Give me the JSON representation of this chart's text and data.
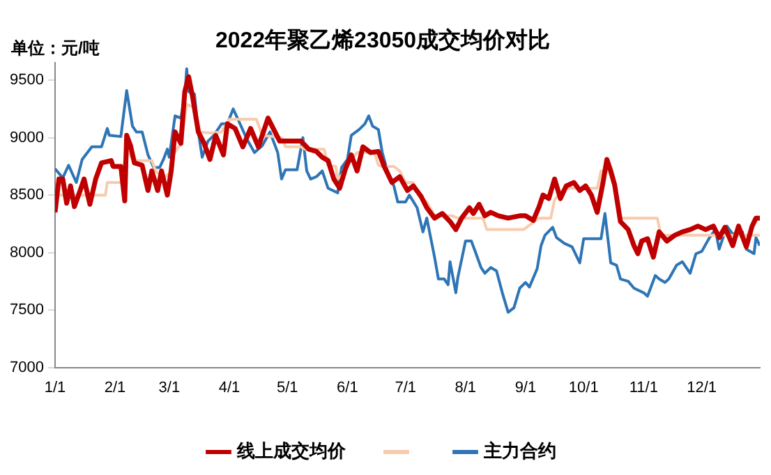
{
  "chart_data": {
    "type": "line",
    "title": "2022年聚乙烯23050成交均价对比",
    "ylabel": "单位：元/吨",
    "xlim": [
      "2022-01-01",
      "2022-12-31"
    ],
    "xticks": [
      {
        "value": "2022-01-01",
        "label": "1/1"
      },
      {
        "value": "2022-02-01",
        "label": "2/1"
      },
      {
        "value": "2022-03-01",
        "label": "3/1"
      },
      {
        "value": "2022-04-01",
        "label": "4/1"
      },
      {
        "value": "2022-05-01",
        "label": "5/1"
      },
      {
        "value": "2022-06-01",
        "label": "6/1"
      },
      {
        "value": "2022-07-01",
        "label": "7/1"
      },
      {
        "value": "2022-08-01",
        "label": "8/1"
      },
      {
        "value": "2022-09-01",
        "label": "9/1"
      },
      {
        "value": "2022-10-01",
        "label": "10/1"
      },
      {
        "value": "2022-11-01",
        "label": "11/1"
      },
      {
        "value": "2022-12-01",
        "label": "12/1"
      }
    ],
    "ylim": [
      7000,
      9650
    ],
    "yticks": [
      7000,
      7500,
      8000,
      8500,
      9000,
      9500
    ],
    "grid": false,
    "legend": "bottom",
    "marker": "none",
    "line_style": "solid",
    "series": [
      {
        "name": "线上成交均价",
        "color": "#c00000",
        "x": [
          "2022-01-01",
          "2022-01-03",
          "2022-01-05",
          "2022-01-07",
          "2022-01-09",
          "2022-01-11",
          "2022-01-14",
          "2022-01-16",
          "2022-01-19",
          "2022-01-22",
          "2022-01-25",
          "2022-01-30",
          "2022-01-31",
          "2022-02-04",
          "2022-02-06",
          "2022-02-07",
          "2022-02-09",
          "2022-02-11",
          "2022-02-15",
          "2022-02-18",
          "2022-02-20",
          "2022-02-23",
          "2022-02-25",
          "2022-02-28",
          "2022-03-02",
          "2022-03-04",
          "2022-03-07",
          "2022-03-09",
          "2022-03-11",
          "2022-03-13",
          "2022-03-16",
          "2022-03-19",
          "2022-03-22",
          "2022-03-25",
          "2022-03-29",
          "2022-03-31",
          "2022-04-04",
          "2022-04-08",
          "2022-04-12",
          "2022-04-16",
          "2022-04-21",
          "2022-04-24",
          "2022-04-27",
          "2022-05-08",
          "2022-05-12",
          "2022-05-16",
          "2022-05-19",
          "2022-05-22",
          "2022-05-25",
          "2022-05-28",
          "2022-05-31",
          "2022-06-03",
          "2022-06-06",
          "2022-06-09",
          "2022-06-13",
          "2022-06-17",
          "2022-06-20",
          "2022-06-24",
          "2022-06-28",
          "2022-07-02",
          "2022-07-05",
          "2022-07-09",
          "2022-07-12",
          "2022-07-16",
          "2022-07-20",
          "2022-07-24",
          "2022-07-27",
          "2022-07-30",
          "2022-08-03",
          "2022-08-05",
          "2022-08-08",
          "2022-08-11",
          "2022-08-14",
          "2022-08-18",
          "2022-08-23",
          "2022-08-29",
          "2022-09-01",
          "2022-09-05",
          "2022-09-08",
          "2022-09-10",
          "2022-09-13",
          "2022-09-16",
          "2022-09-19",
          "2022-09-22",
          "2022-09-26",
          "2022-09-29",
          "2022-10-02",
          "2022-10-05",
          "2022-10-08",
          "2022-10-11",
          "2022-10-13",
          "2022-10-15",
          "2022-10-17",
          "2022-10-20",
          "2022-10-24",
          "2022-10-27",
          "2022-10-29",
          "2022-10-31",
          "2022-11-03",
          "2022-11-06",
          "2022-11-09",
          "2022-11-13",
          "2022-11-17",
          "2022-11-21",
          "2022-11-25",
          "2022-11-29",
          "2022-12-03",
          "2022-12-07",
          "2022-12-10",
          "2022-12-13",
          "2022-12-17",
          "2022-12-20",
          "2022-12-24",
          "2022-12-27",
          "2022-12-29",
          "2022-12-31"
        ],
        "values": [
          8350,
          8640,
          8640,
          8430,
          8580,
          8400,
          8540,
          8640,
          8420,
          8640,
          8780,
          8800,
          8750,
          8750,
          8450,
          9020,
          8930,
          8780,
          8760,
          8540,
          8710,
          8540,
          8710,
          8500,
          8710,
          9050,
          8950,
          9400,
          9530,
          9360,
          9050,
          8950,
          8810,
          9020,
          8850,
          9120,
          9080,
          8920,
          9080,
          8920,
          9170,
          9070,
          8970,
          8970,
          8900,
          8880,
          8830,
          8800,
          8640,
          8560,
          8730,
          8850,
          8710,
          8920,
          8870,
          8880,
          8750,
          8610,
          8660,
          8540,
          8580,
          8490,
          8390,
          8300,
          8340,
          8270,
          8200,
          8300,
          8390,
          8340,
          8420,
          8320,
          8350,
          8320,
          8300,
          8320,
          8320,
          8280,
          8400,
          8500,
          8470,
          8640,
          8470,
          8580,
          8610,
          8540,
          8580,
          8500,
          8350,
          8610,
          8810,
          8710,
          8590,
          8270,
          8200,
          8060,
          7990,
          8100,
          8120,
          7960,
          8180,
          8100,
          8150,
          8180,
          8200,
          8230,
          8200,
          8230,
          8130,
          8220,
          8060,
          8230,
          8050,
          8230,
          8300,
          8300
        ]
      },
      {
        "color": "#f8cbad",
        "x": [
          "2022-01-01",
          "2022-01-27",
          "2022-01-28",
          "2022-02-04",
          "2022-02-07",
          "2022-02-10",
          "2022-02-12",
          "2022-02-20",
          "2022-02-22",
          "2022-02-26",
          "2022-03-01",
          "2022-03-03",
          "2022-03-07",
          "2022-03-10",
          "2022-03-14",
          "2022-03-17",
          "2022-03-22",
          "2022-03-28",
          "2022-04-01",
          "2022-04-15",
          "2022-04-18",
          "2022-04-28",
          "2022-04-30",
          "2022-05-08",
          "2022-05-10",
          "2022-05-20",
          "2022-05-22",
          "2022-05-26",
          "2022-05-27",
          "2022-05-30",
          "2022-06-03",
          "2022-06-06",
          "2022-06-15",
          "2022-06-17",
          "2022-06-19",
          "2022-06-25",
          "2022-06-28",
          "2022-07-01",
          "2022-07-05",
          "2022-07-08",
          "2022-07-12",
          "2022-07-16",
          "2022-07-25",
          "2022-07-28",
          "2022-08-10",
          "2022-08-12",
          "2022-08-31",
          "2022-09-08",
          "2022-09-14",
          "2022-09-16",
          "2022-09-21",
          "2022-10-08",
          "2022-10-10",
          "2022-10-14",
          "2022-10-17",
          "2022-10-20",
          "2022-11-08",
          "2022-11-10",
          "2022-12-31"
        ],
        "values": [
          8500,
          8500,
          8610,
          8610,
          8910,
          8810,
          8800,
          8800,
          8710,
          8640,
          8690,
          8850,
          8950,
          9290,
          9260,
          9050,
          9040,
          9050,
          9160,
          9160,
          9020,
          9000,
          8920,
          8920,
          8900,
          8900,
          8760,
          8750,
          8640,
          8690,
          8810,
          8870,
          8870,
          8760,
          8750,
          8750,
          8710,
          8610,
          8610,
          8490,
          8440,
          8320,
          8320,
          8300,
          8300,
          8200,
          8200,
          8300,
          8300,
          8460,
          8560,
          8560,
          8710,
          8710,
          8560,
          8300,
          8300,
          8150,
          8150
        ]
      },
      {
        "name": "主力合约",
        "color": "#2e75b6",
        "x": [
          "2022-01-01",
          "2022-01-05",
          "2022-01-08",
          "2022-01-12",
          "2022-01-15",
          "2022-01-20",
          "2022-01-25",
          "2022-01-28",
          "2022-01-29",
          "2022-02-04",
          "2022-02-07",
          "2022-02-10",
          "2022-02-12",
          "2022-02-15",
          "2022-02-18",
          "2022-02-21",
          "2022-02-24",
          "2022-02-26",
          "2022-02-28",
          "2022-03-01",
          "2022-03-04",
          "2022-03-07",
          "2022-03-09",
          "2022-03-10",
          "2022-03-11",
          "2022-03-14",
          "2022-03-16",
          "2022-03-18",
          "2022-03-21",
          "2022-03-24",
          "2022-03-28",
          "2022-03-31",
          "2022-04-03",
          "2022-04-06",
          "2022-04-10",
          "2022-04-14",
          "2022-04-18",
          "2022-04-22",
          "2022-04-26",
          "2022-04-28",
          "2022-04-30",
          "2022-05-06",
          "2022-05-09",
          "2022-05-11",
          "2022-05-13",
          "2022-05-16",
          "2022-05-19",
          "2022-05-22",
          "2022-05-27",
          "2022-05-29",
          "2022-06-01",
          "2022-06-03",
          "2022-06-07",
          "2022-06-10",
          "2022-06-12",
          "2022-06-14",
          "2022-06-17",
          "2022-06-19",
          "2022-06-22",
          "2022-06-25",
          "2022-06-27",
          "2022-07-01",
          "2022-07-03",
          "2022-07-07",
          "2022-07-10",
          "2022-07-12",
          "2022-07-16",
          "2022-07-18",
          "2022-07-21",
          "2022-07-23",
          "2022-07-24",
          "2022-07-27",
          "2022-07-28",
          "2022-08-01",
          "2022-08-04",
          "2022-08-06",
          "2022-08-09",
          "2022-08-11",
          "2022-08-14",
          "2022-08-17",
          "2022-08-20",
          "2022-08-23",
          "2022-08-26",
          "2022-08-29",
          "2022-09-01",
          "2022-09-03",
          "2022-09-07",
          "2022-09-09",
          "2022-09-11",
          "2022-09-15",
          "2022-09-17",
          "2022-09-21",
          "2022-09-25",
          "2022-09-29",
          "2022-10-01",
          "2022-10-10",
          "2022-10-12",
          "2022-10-15",
          "2022-10-18",
          "2022-10-20",
          "2022-10-24",
          "2022-10-27",
          "2022-11-01",
          "2022-11-03",
          "2022-11-07",
          "2022-11-09",
          "2022-11-12",
          "2022-11-14",
          "2022-11-18",
          "2022-11-21",
          "2022-11-25",
          "2022-11-28",
          "2022-12-01",
          "2022-12-05",
          "2022-12-08",
          "2022-12-10",
          "2022-12-14",
          "2022-12-17",
          "2022-12-22",
          "2022-12-24",
          "2022-12-28",
          "2022-12-29",
          "2022-12-31"
        ],
        "values": [
          8730,
          8650,
          8760,
          8610,
          8810,
          8920,
          8920,
          9080,
          9020,
          9010,
          9410,
          9100,
          9050,
          9050,
          8850,
          8740,
          8740,
          8810,
          8900,
          8830,
          9190,
          9170,
          9360,
          9600,
          9400,
          9380,
          9050,
          8830,
          8970,
          9020,
          9120,
          9120,
          9250,
          9140,
          8990,
          8870,
          8930,
          9050,
          8870,
          8640,
          8720,
          8720,
          9000,
          8710,
          8640,
          8660,
          8710,
          8560,
          8520,
          8740,
          8810,
          9020,
          9070,
          9120,
          9190,
          9100,
          9070,
          8870,
          8690,
          8580,
          8440,
          8440,
          8500,
          8390,
          8180,
          8300,
          7960,
          7770,
          7770,
          7720,
          7920,
          7650,
          7780,
          8100,
          8100,
          8010,
          7870,
          7820,
          7870,
          7840,
          7650,
          7480,
          7520,
          7690,
          7740,
          7700,
          7860,
          8060,
          8150,
          8220,
          8130,
          8080,
          8050,
          7910,
          8120,
          8120,
          8340,
          7910,
          7890,
          7770,
          7750,
          7690,
          7650,
          7620,
          7800,
          7770,
          7740,
          7770,
          7890,
          7920,
          7820,
          7990,
          8010,
          8130,
          8200,
          8030,
          8230,
          8160,
          8180,
          8030,
          7990,
          8130,
          8060
        ]
      }
    ]
  }
}
